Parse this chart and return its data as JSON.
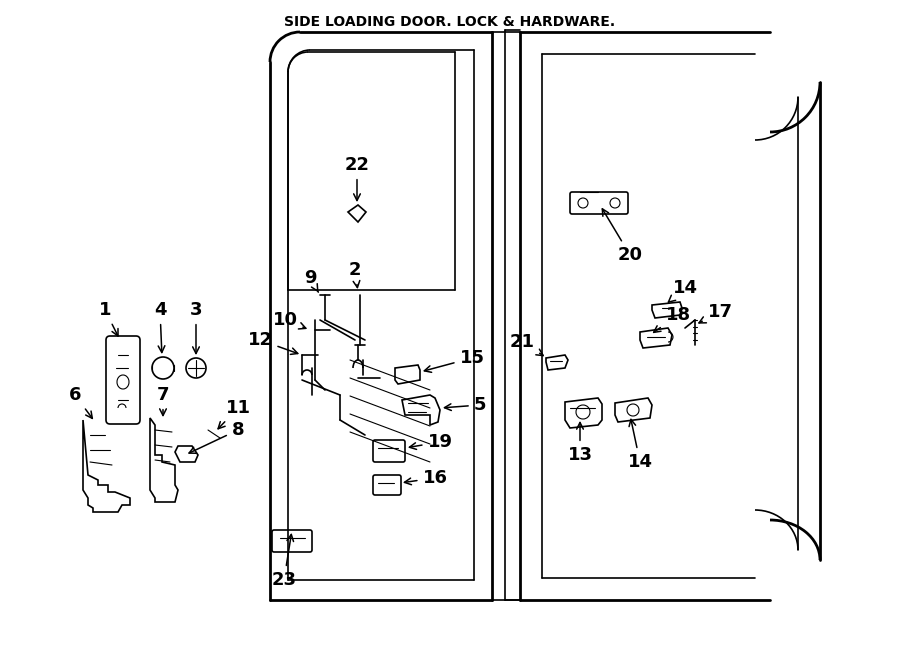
{
  "title": "SIDE LOADING DOOR. LOCK & HARDWARE.",
  "bg_color": "#ffffff",
  "line_color": "#000000",
  "text_color": "#000000",
  "figsize": [
    9.0,
    6.61
  ],
  "dpi": 100
}
